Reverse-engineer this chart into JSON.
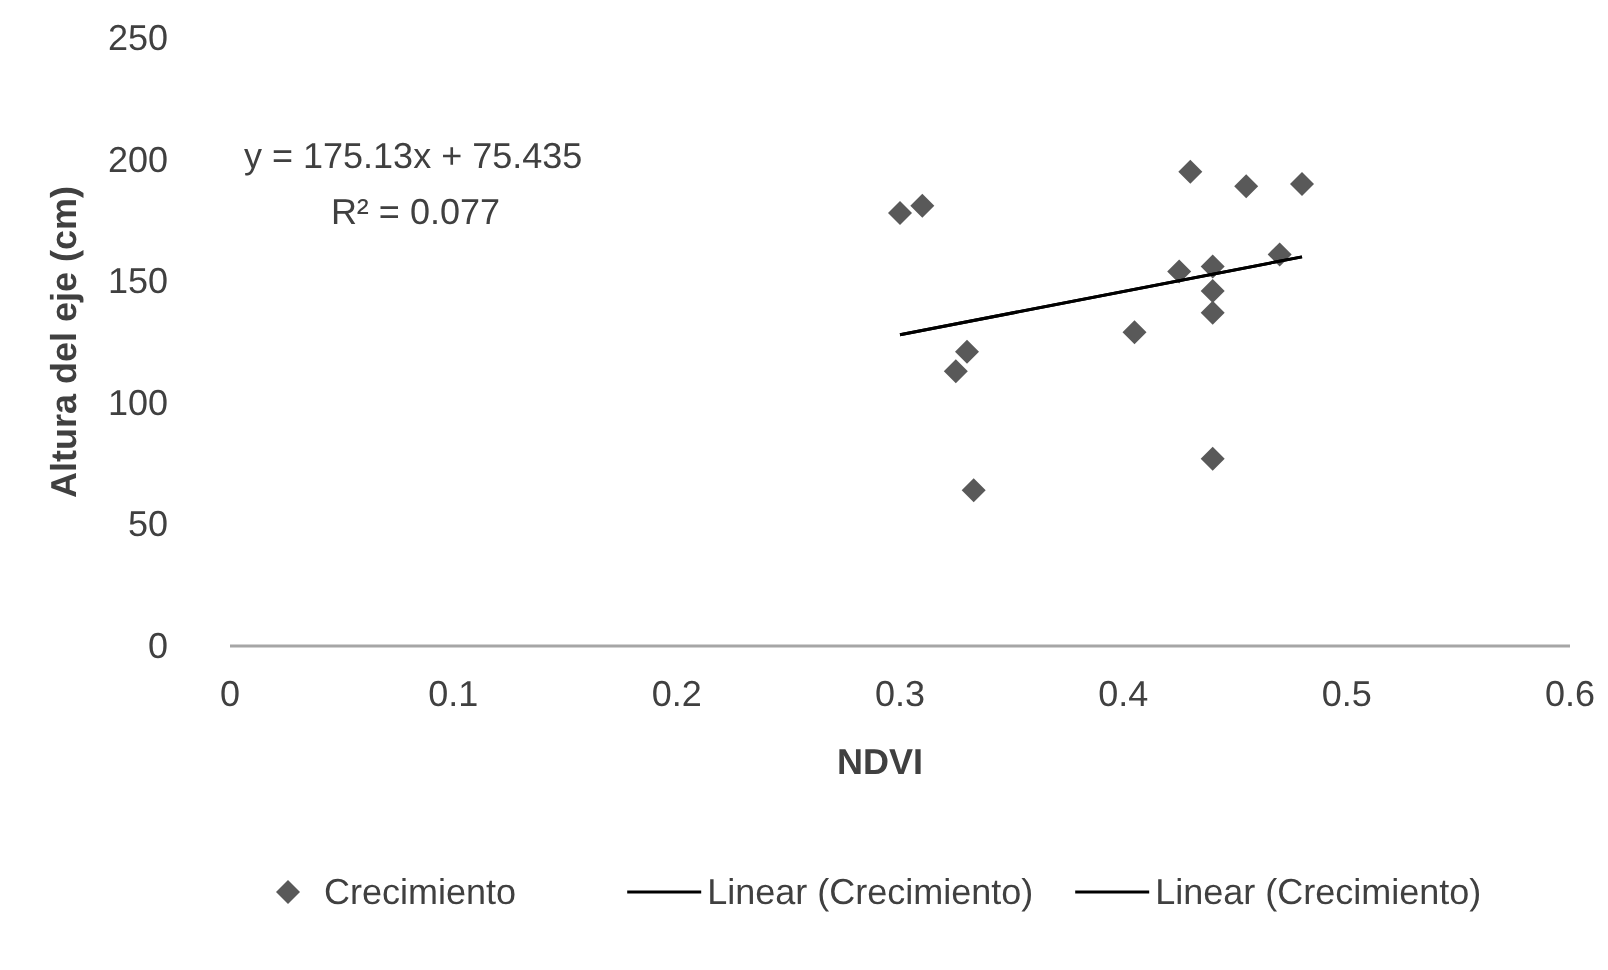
{
  "chart_data": {
    "type": "scatter",
    "xlabel": "NDVI",
    "ylabel": "Altura del eje (cm)",
    "annotations": [
      "y = 175.13x + 75.435",
      "R² = 0.077"
    ],
    "xlim": [
      0,
      0.6
    ],
    "xticks": [
      0,
      0.1,
      0.2,
      0.3,
      0.4,
      0.5,
      0.6
    ],
    "ylim": [
      0,
      250
    ],
    "yticks": [
      0,
      50,
      100,
      150,
      200,
      250
    ],
    "grid": false,
    "legend": "bottom",
    "series": [
      {
        "name": "Crecimiento",
        "marker": "diamond",
        "color": "#595959",
        "x": [
          0.3,
          0.31,
          0.43,
          0.455,
          0.48,
          0.47,
          0.425,
          0.44,
          0.44,
          0.44,
          0.405,
          0.33,
          0.325,
          0.333,
          0.44
        ],
        "values": [
          178,
          181,
          195,
          189,
          190,
          161,
          154,
          156,
          146,
          137,
          129,
          121,
          113,
          64,
          77
        ]
      },
      {
        "name": "Linear (Crecimiento)",
        "type": "line",
        "marker": "none",
        "color": "#000000",
        "x": [
          0.3,
          0.48
        ],
        "values": [
          128,
          160
        ]
      },
      {
        "name": "Linear (Crecimiento)",
        "type": "line",
        "marker": "none",
        "color": "#000000",
        "x": [
          0.3,
          0.48
        ],
        "values": [
          128,
          160
        ]
      }
    ]
  }
}
